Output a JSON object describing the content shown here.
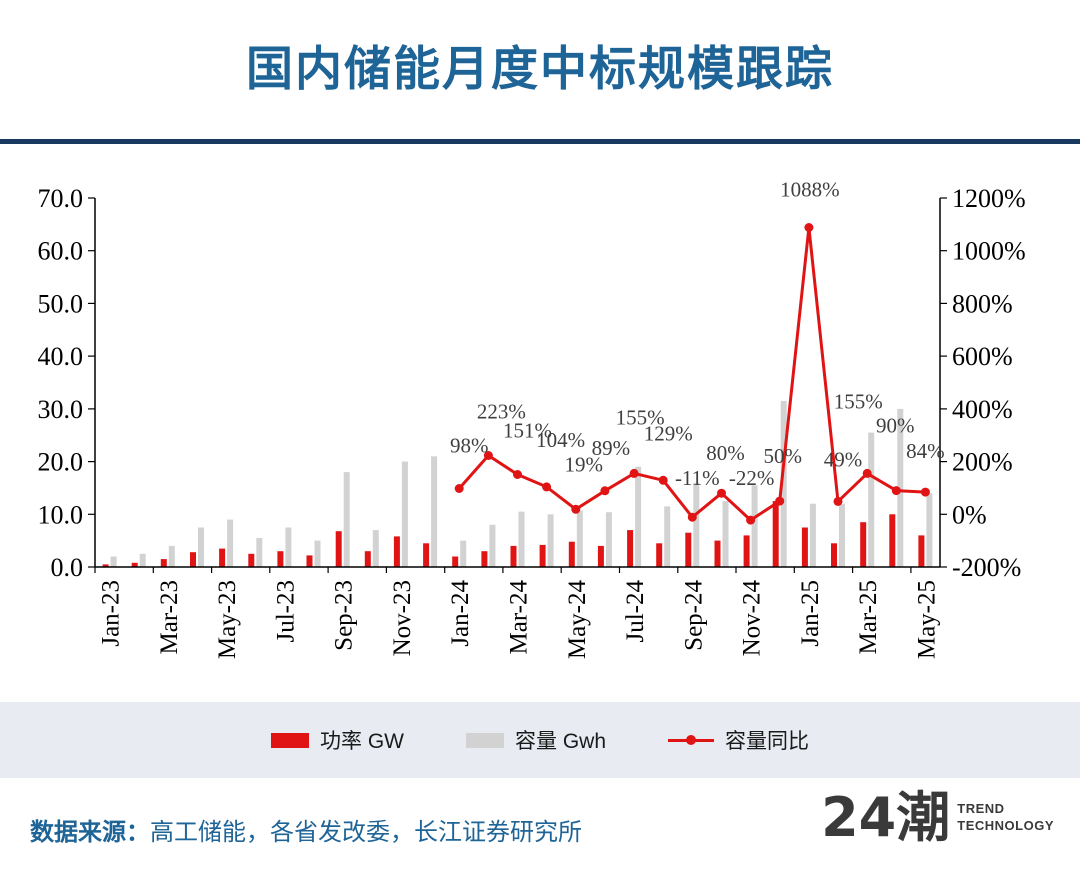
{
  "header": {
    "title": "国内储能月度中标规模跟踪"
  },
  "footer": {
    "source_label": "数据来源：",
    "source_text": "高工储能，各省发改委，长江证券研究所",
    "logo_main": "24潮",
    "logo_line1": "TREND",
    "logo_line2": "TECHNOLOGY"
  },
  "colors": {
    "title_blue": "#1f6497",
    "divider_navy": "#183a60",
    "power_red": "#e01414",
    "capacity_gray": "#d2d2d2",
    "line_red": "#e01414",
    "legend_band_bg": "#e8ecf2",
    "data_label_gray": "#3f3f3f",
    "axis_black": "#000000"
  },
  "chart_data": {
    "type": "combo (bar + line)",
    "title": "国内储能月度中标规模跟踪",
    "grid": false,
    "legend_position": "bottom",
    "categories": [
      "Jan-23",
      "Feb-23",
      "Mar-23",
      "Apr-23",
      "May-23",
      "Jun-23",
      "Jul-23",
      "Aug-23",
      "Sep-23",
      "Oct-23",
      "Nov-23",
      "Dec-23",
      "Jan-24",
      "Feb-24",
      "Mar-24",
      "Apr-24",
      "May-24",
      "Jun-24",
      "Jul-24",
      "Aug-24",
      "Sep-24",
      "Oct-24",
      "Nov-24",
      "Dec-24",
      "Jan-25",
      "Feb-25",
      "Mar-25",
      "Apr-25",
      "May-25"
    ],
    "x_label_interval": 2,
    "x_tick_labels_shown": [
      "Jan-23",
      "Mar-23",
      "May-23",
      "Jul-23",
      "Sep-23",
      "Nov-23",
      "Jan-24",
      "Mar-24",
      "May-24",
      "Jul-24",
      "Sep-24",
      "Nov-24",
      "Jan-25",
      "Mar-25",
      "May-25"
    ],
    "left_axis": {
      "min": 0,
      "max": 70,
      "step": 10,
      "tick_labels": [
        "0.0",
        "10.0",
        "20.0",
        "30.0",
        "40.0",
        "50.0",
        "60.0",
        "70.0"
      ]
    },
    "right_axis": {
      "min": -200,
      "max": 1200,
      "step": 200,
      "tick_labels": [
        "-200%",
        "0%",
        "200%",
        "400%",
        "600%",
        "800%",
        "1000%",
        "1200%"
      ]
    },
    "series": [
      {
        "name": "功率 GW",
        "type": "bar",
        "axis": "left",
        "color": "#e01414",
        "values": [
          0.5,
          0.8,
          1.5,
          2.8,
          3.5,
          2.5,
          3.0,
          2.2,
          6.8,
          3.0,
          5.8,
          4.5,
          2.0,
          3.0,
          4.0,
          4.2,
          4.8,
          4.0,
          7.0,
          4.5,
          6.5,
          5.0,
          6.0,
          12.5,
          7.5,
          4.5,
          8.5,
          10.0,
          6.0
        ]
      },
      {
        "name": "容量 Gwh",
        "type": "bar",
        "axis": "left",
        "color": "#d2d2d2",
        "values": [
          2.0,
          2.5,
          4.0,
          7.5,
          9.0,
          5.5,
          7.5,
          5.0,
          18.0,
          7.0,
          20.0,
          21.0,
          5.0,
          8.0,
          10.5,
          10.0,
          10.7,
          10.4,
          19.0,
          11.5,
          16.0,
          12.5,
          15.5,
          31.5,
          12.0,
          12.0,
          25.5,
          30.0,
          14.0
        ]
      },
      {
        "name": "容量同比",
        "type": "line",
        "axis": "right",
        "color": "#e01414",
        "start_category": "Jan-24",
        "start_index": 12,
        "values": [
          98,
          223,
          151,
          104,
          19,
          89,
          155,
          129,
          -11,
          80,
          -22,
          50,
          1088,
          49,
          155,
          90,
          84
        ],
        "point_labels": [
          "98%",
          "223%",
          "151%",
          "104%",
          "19%",
          "89%",
          "155%",
          "129%",
          "-11%",
          "80%",
          "-22%",
          "50%",
          "1088%",
          "49%",
          "155%",
          "90%",
          "84%"
        ]
      }
    ],
    "legend": [
      "功率 GW",
      "容量 Gwh",
      "容量同比"
    ]
  }
}
